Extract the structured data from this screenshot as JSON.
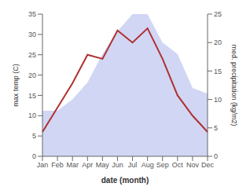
{
  "chart_data": {
    "type": "line",
    "categories": [
      "Jan",
      "Feb",
      "Mar",
      "Apr",
      "May",
      "Jun",
      "Jul",
      "Aug",
      "Sep",
      "Oct",
      "Nov",
      "Dec"
    ],
    "xlabel": "date (month)",
    "ylabel": "max temp (C)",
    "y2label": "med. precipitation (kg/m2)",
    "series": [
      {
        "type": "area",
        "axis": "y2",
        "color": "#c0c8f0",
        "values": [
          8,
          8,
          10,
          13,
          18,
          22,
          25,
          25,
          20,
          18,
          12,
          11
        ]
      },
      {
        "type": "line",
        "color": "#b03030",
        "values": [
          6,
          12,
          18,
          25,
          24,
          31,
          28,
          31.5,
          24,
          15,
          10,
          6
        ]
      }
    ],
    "ylim": [
      0,
      35
    ],
    "yticks": [
      0,
      5,
      10,
      15,
      20,
      25,
      30,
      35
    ],
    "y2lim": [
      0,
      25
    ],
    "y2ticks": [
      0,
      5,
      10,
      15,
      20,
      25
    ],
    "grid": false
  }
}
